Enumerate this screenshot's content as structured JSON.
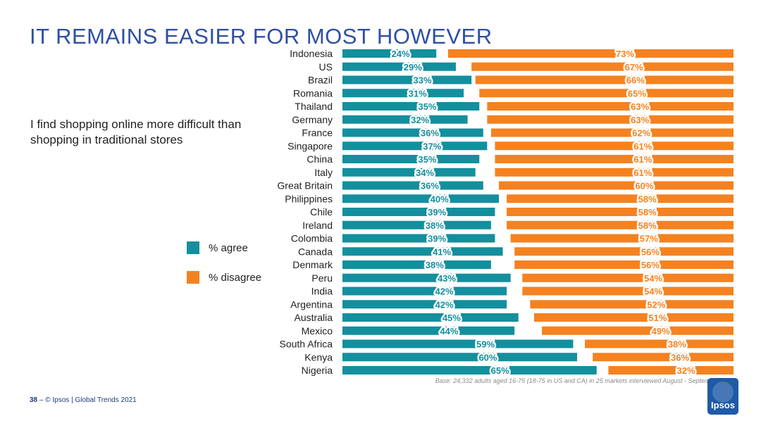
{
  "title": "IT REMAINS EASIER FOR MOST HOWEVER",
  "subtitle": "I find shopping online more difficult than shopping in traditional stores",
  "legend": {
    "agree": "% agree",
    "disagree": "% disagree"
  },
  "colors": {
    "agree": "#138f9e",
    "disagree": "#f58220",
    "title": "#2e4fa3"
  },
  "footer": {
    "page": "38",
    "separator": "–",
    "source": "© Ipsos | Global Trends 2021"
  },
  "base_note": "Base: 24,332 adults aged 16-75 (18-75 in US and CA) in 25 markets interviewed August - September 2021",
  "logo_text": "Ipsos",
  "chart_data": {
    "type": "bar",
    "orientation": "horizontal",
    "stacked": "diverging",
    "categories": [
      "Indonesia",
      "US",
      "Brazil",
      "Romania",
      "Thailand",
      "Germany",
      "France",
      "Singapore",
      "China",
      "Italy",
      "Great Britain",
      "Philippines",
      "Chile",
      "Ireland",
      "Colombia",
      "Canada",
      "Denmark",
      "Peru",
      "India",
      "Argentina",
      "Australia",
      "Mexico",
      "South Africa",
      "Kenya",
      "Nigeria"
    ],
    "series": [
      {
        "name": "% agree",
        "values": [
          24,
          29,
          33,
          31,
          35,
          32,
          36,
          37,
          35,
          34,
          36,
          40,
          39,
          38,
          39,
          41,
          38,
          43,
          42,
          42,
          45,
          44,
          59,
          60,
          65
        ]
      },
      {
        "name": "% disagree",
        "values": [
          73,
          67,
          66,
          65,
          63,
          63,
          62,
          61,
          61,
          61,
          60,
          58,
          58,
          58,
          57,
          56,
          56,
          54,
          54,
          52,
          51,
          49,
          38,
          36,
          32
        ]
      }
    ],
    "value_suffix": "%",
    "xlim": [
      0,
      100
    ],
    "legend_position": "left"
  }
}
